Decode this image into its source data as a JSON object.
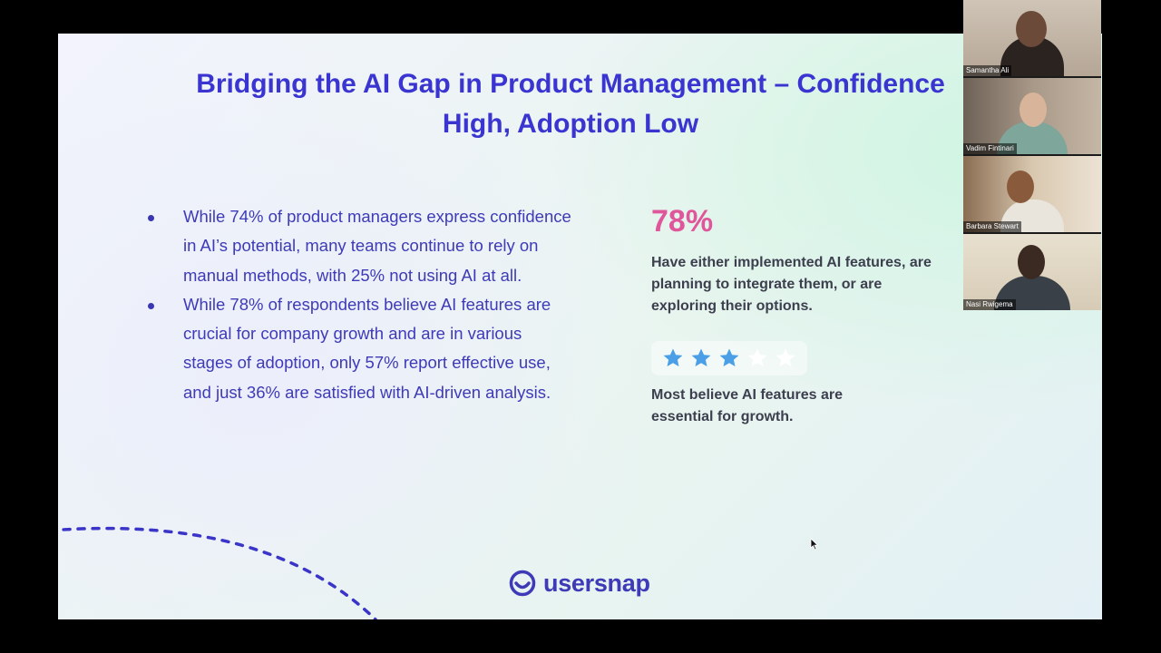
{
  "slide": {
    "title_line1": "Bridging the AI Gap in Product Management – Confidence",
    "title_line2": "High, Adoption Low",
    "bullets": [
      "While 74% of product managers express confidence in AI’s potential, many teams continue to rely on manual methods, with 25% not using AI at all.",
      "While 78% of respondents believe AI features are crucial for company growth and are in various stages of adoption, only 57% report effective use, and just 36% are satisfied with AI-driven analysis."
    ],
    "stat_value": "78%",
    "stat_description": "Have either implemented AI features, are planning to integrate them, or are exploring their options.",
    "rating": {
      "value": 3,
      "max": 5,
      "filled_color": "#4a9fe6",
      "empty_color": "#ffffff"
    },
    "rating_description": "Most believe AI features are essential for growth.",
    "brand": "usersnap",
    "colors": {
      "title": "#3a35d1",
      "body": "#3e3ab8",
      "stat": "#e0569a",
      "text_dark": "#3d3f4e"
    }
  },
  "participants": [
    {
      "name": "Samantha Ali"
    },
    {
      "name": "Vadim Fintinari"
    },
    {
      "name": "Barbara Stewart"
    },
    {
      "name": "Nasi Rwigema"
    }
  ]
}
